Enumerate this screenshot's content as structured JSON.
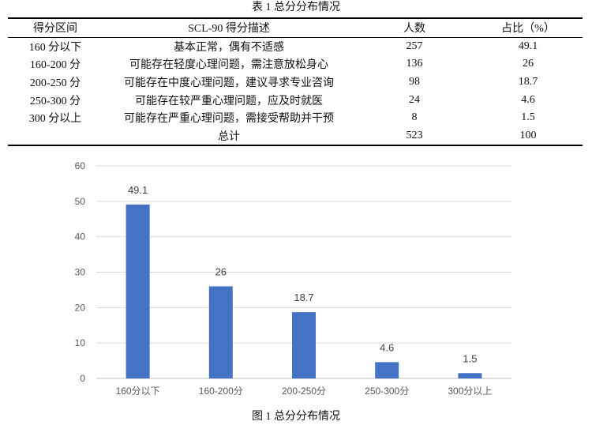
{
  "table": {
    "caption": "表 1  总分分布情况",
    "headers": [
      "得分区间",
      "SCL-90 得分描述",
      "人数",
      "占比（%）"
    ],
    "rows": [
      [
        "160 分以下",
        "基本正常，偶有不适感",
        "257",
        "49.1"
      ],
      [
        "160-200 分",
        "可能存在轻度心理问题，需注意放松身心",
        "136",
        "26"
      ],
      [
        "200-250 分",
        "可能存在中度心理问题，建议寻求专业咨询",
        "98",
        "18.7"
      ],
      [
        "250-300 分",
        "可能存在较严重心理问题，应及时就医",
        "24",
        "4.6"
      ],
      [
        "300 分以上",
        "可能存在严重心理问题，需接受帮助并干预",
        "8",
        "1.5"
      ]
    ],
    "total": [
      "",
      "总计",
      "523",
      "100"
    ]
  },
  "chart_data": {
    "type": "bar",
    "categories": [
      "160分以下",
      "160-200分",
      "200-250分",
      "250-300分",
      "300分以上"
    ],
    "values": [
      49.1,
      26,
      18.7,
      4.6,
      1.5
    ],
    "data_labels": [
      "49.1",
      "26",
      "18.7",
      "4.6",
      "1.5"
    ],
    "ylim": [
      0,
      60
    ],
    "yticks": [
      0,
      10,
      20,
      30,
      40,
      50,
      60
    ],
    "grid": true,
    "bar_color": "#4472C4",
    "grid_color": "#D9D9D9",
    "title": "",
    "xlabel": "",
    "ylabel": ""
  },
  "figure": {
    "caption": "图 1  总分分布情况"
  }
}
